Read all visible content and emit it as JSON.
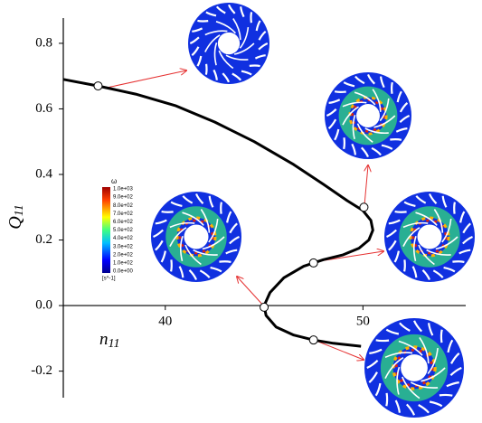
{
  "chart_data": {
    "type": "line",
    "xlabel": {
      "main": "n",
      "sub": "11"
    },
    "ylabel": {
      "main": "Q",
      "sub": "11"
    },
    "xlim": [
      34.84,
      55.2
    ],
    "ylim": [
      -0.281,
      0.877
    ],
    "xticks": [
      40,
      50
    ],
    "yticks": [
      -0.2,
      {
        "value": 0,
        "label": "0.0"
      },
      0.2,
      0.4,
      0.6,
      0.8
    ],
    "series": [
      {
        "color": "#000000",
        "x": [
          34.84,
          36.6,
          38.5,
          40.5,
          42.5,
          44.5,
          46.5,
          48.0,
          49.2,
          50.0,
          50.4,
          50.5,
          50.3,
          49.8,
          49.0,
          48.0,
          47.0,
          46.0,
          45.3,
          45.0,
          45.1,
          45.6,
          46.5,
          47.5,
          48.5,
          49.9
        ],
        "values": [
          0.69,
          0.67,
          0.645,
          0.61,
          0.56,
          0.5,
          0.43,
          0.37,
          0.32,
          0.29,
          0.26,
          0.23,
          0.2,
          0.175,
          0.155,
          0.14,
          0.12,
          0.085,
          0.04,
          0.0,
          -0.03,
          -0.065,
          -0.09,
          -0.105,
          -0.115,
          -0.124
        ]
      }
    ],
    "markers": {
      "color": "#ffffff",
      "x": [
        36.6,
        50.05,
        47.5,
        45.0,
        47.5
      ],
      "values": [
        0.67,
        0.3,
        0.13,
        -0.005,
        -0.105
      ]
    },
    "colorbar": {
      "title": "ω",
      "unit": "[s^-1]",
      "labels": [
        "1.0e+03",
        "9.0e+02",
        "8.0e+02",
        "7.0e+02",
        "6.0e+02",
        "5.0e+02",
        "4.0e+02",
        "3.0e+02",
        "2.0e+02",
        "1.0e+02",
        "0.0e+00"
      ]
    }
  }
}
